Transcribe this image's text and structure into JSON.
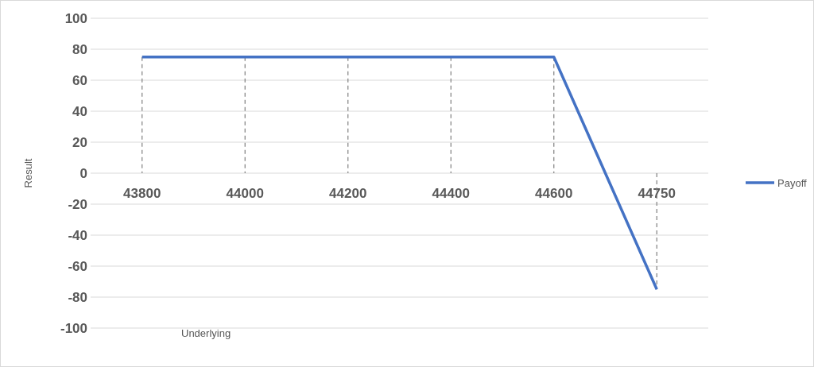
{
  "chart_data": {
    "type": "line",
    "xlabel": "Underlying",
    "ylabel": "Result",
    "categories": [
      "43800",
      "44000",
      "44200",
      "44400",
      "44600",
      "44750"
    ],
    "series": [
      {
        "name": "Payoff",
        "color": "#4472c4",
        "values": [
          75,
          75,
          75,
          75,
          75,
          -75
        ],
        "errors": [
          [
            0,
            75
          ],
          [
            0,
            75
          ],
          [
            0,
            75
          ],
          [
            0,
            75
          ],
          [
            0,
            75
          ],
          [
            -75,
            0
          ]
        ]
      }
    ],
    "ylim": [
      -100,
      100
    ],
    "yticks": [
      -100,
      -80,
      -60,
      -40,
      -20,
      0,
      20,
      40,
      60,
      80,
      100
    ],
    "grid": "y",
    "legend": "right",
    "marker": "none",
    "line_style": "solid"
  }
}
